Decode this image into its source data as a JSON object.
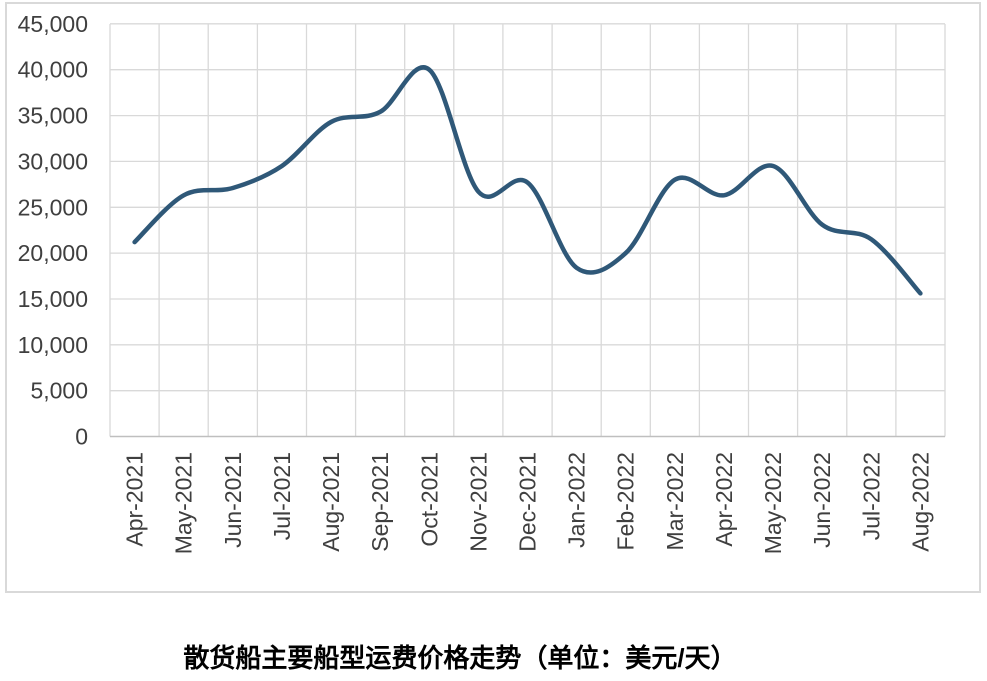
{
  "chart_data": {
    "type": "line",
    "title": "散货船主要船型运费价格走势（单位：美元/天）",
    "x": [
      "Apr-2021",
      "May-2021",
      "Jun-2021",
      "Jul-2021",
      "Aug-2021",
      "Sep-2021",
      "Oct-2021",
      "Nov-2021",
      "Dec-2021",
      "Jan-2022",
      "Feb-2022",
      "Mar-2022",
      "Apr-2022",
      "May-2022",
      "Jun-2022",
      "Jul-2022",
      "Aug-2022"
    ],
    "values": [
      21200,
      26300,
      27100,
      29500,
      34300,
      35400,
      40000,
      26700,
      27700,
      18400,
      20000,
      28000,
      26300,
      29500,
      23100,
      21500,
      15600
    ],
    "ylim": [
      0,
      45000
    ],
    "ytick_step": 5000,
    "ytick_labels": [
      "0",
      "5,000",
      "10,000",
      "15,000",
      "20,000",
      "25,000",
      "30,000",
      "35,000",
      "40,000",
      "45,000"
    ],
    "xlabel": "",
    "ylabel": "",
    "grid": "both",
    "legend": "none",
    "smooth": true,
    "colors": {
      "line": "#2f5878",
      "gridline": "#d9d9d9",
      "axis_line": "#bfbfbf",
      "tick_text": "#3f3f3f",
      "title_text": "#000000",
      "frame_border": "#d9d9d9",
      "background": "#ffffff"
    }
  }
}
